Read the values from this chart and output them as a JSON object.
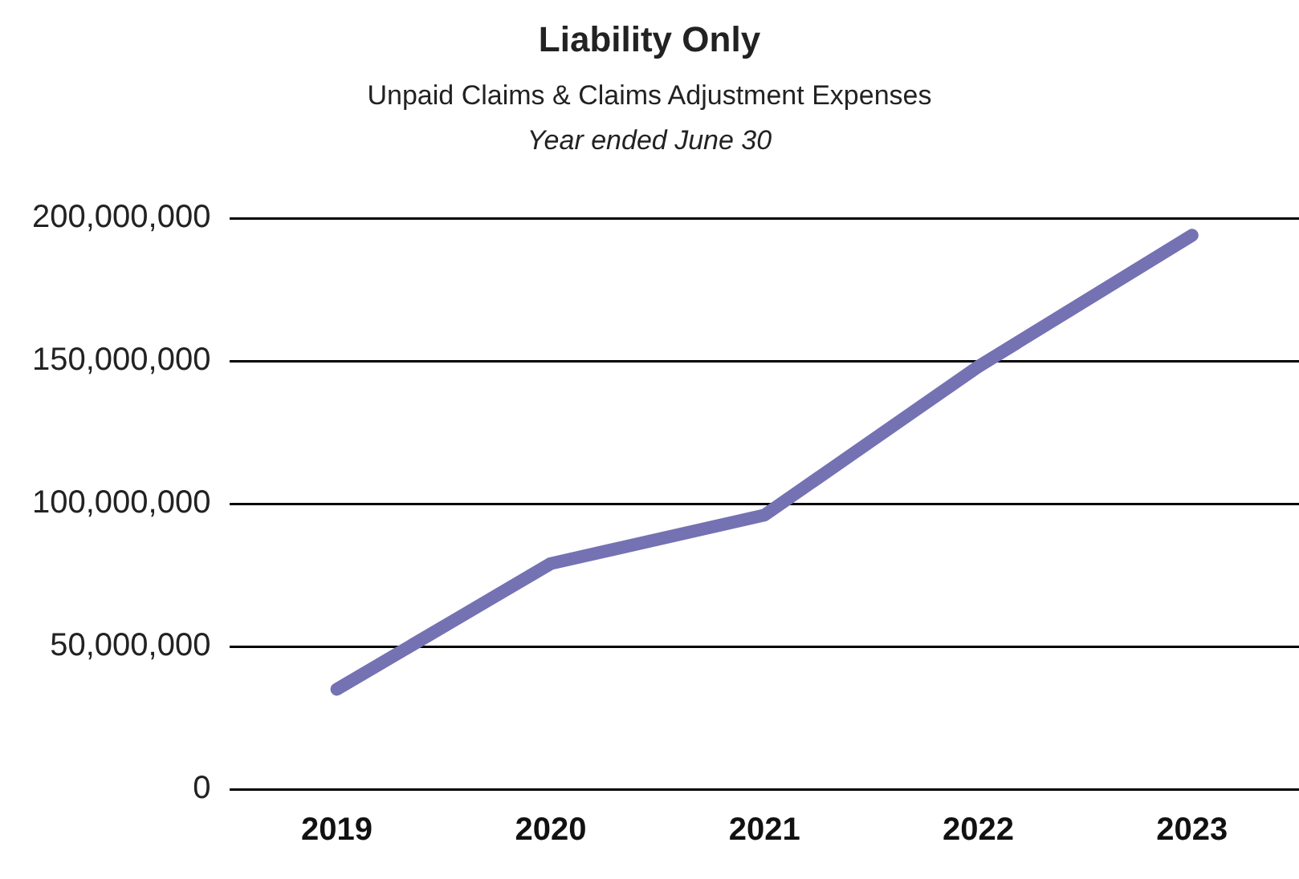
{
  "chart_data": {
    "type": "line",
    "title": "Liability Only",
    "subtitle": "Unpaid Claims & Claims Adjustment Expenses",
    "annotations": [
      "Year ended June 30"
    ],
    "categories": [
      "2019",
      "2020",
      "2021",
      "2022",
      "2023"
    ],
    "series": [
      {
        "color": "#7472b3",
        "values": [
          35000000,
          79000000,
          96000000,
          148000000,
          194000000
        ]
      }
    ],
    "ylim": [
      0,
      200000000
    ],
    "yticks": [
      {
        "value": 0,
        "label": "0"
      },
      {
        "value": 50000000,
        "label": "50,000,000"
      },
      {
        "value": 100000000,
        "label": "100,000,000"
      },
      {
        "value": 150000000,
        "label": "150,000,000"
      },
      {
        "value": 200000000,
        "label": "200,000,000"
      }
    ],
    "grid": "y",
    "legend": false,
    "marker": "none",
    "line_style": "solid"
  }
}
